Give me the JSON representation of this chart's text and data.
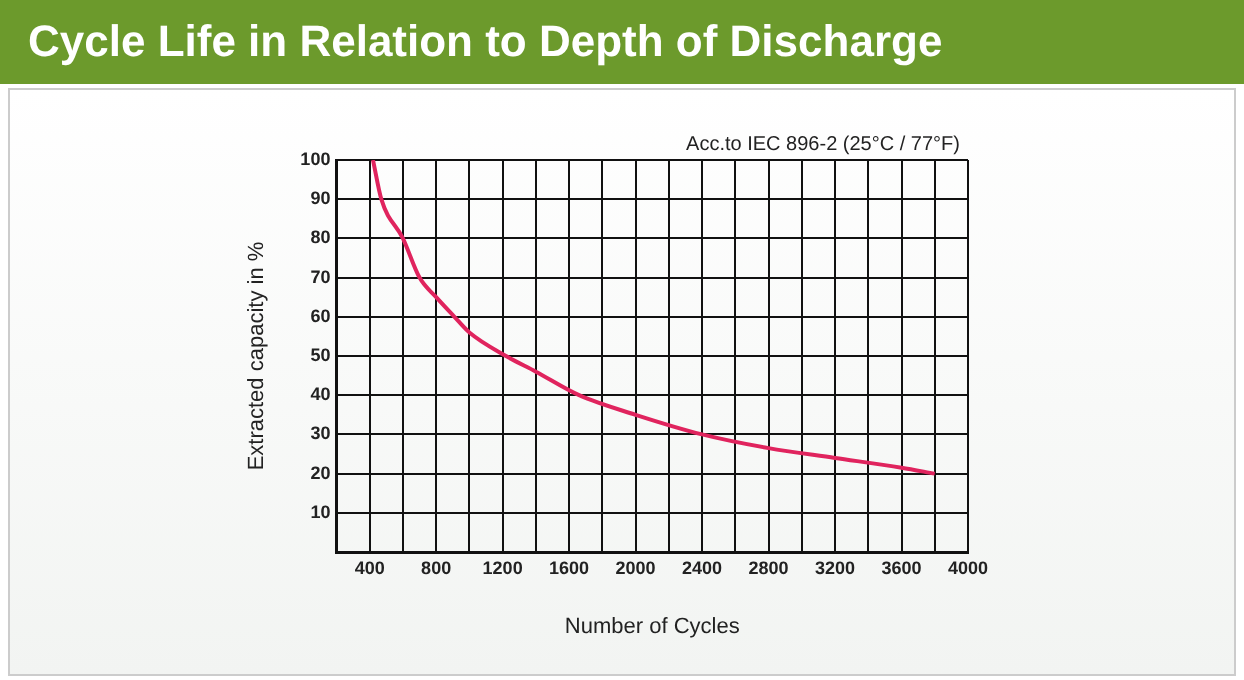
{
  "chart_data": {
    "type": "line",
    "title": "Cycle Life in Relation to Depth of Discharge",
    "xlabel": "Number of Cycles",
    "ylabel": "Extracted capacity in %",
    "annotations": [
      "Acc.to IEC 896-2 (25°C / 77°F)"
    ],
    "x": [
      420,
      470,
      600,
      700,
      800,
      910,
      1000,
      1220,
      1400,
      1660,
      2000,
      2400,
      2800,
      3200,
      3600,
      3800
    ],
    "series": [
      {
        "color": "#e0245e",
        "values": [
          100,
          90,
          80,
          70,
          65,
          60,
          56,
          50,
          46,
          40,
          35,
          30,
          26.5,
          24,
          21.5,
          20
        ]
      }
    ],
    "xlim": [
      200,
      4000
    ],
    "xticks": [
      {
        "value": 200,
        "label": null
      },
      400,
      {
        "value": 600,
        "label": null
      },
      800,
      {
        "value": 1000,
        "label": null
      },
      1200,
      {
        "value": 1400,
        "label": null
      },
      1600,
      {
        "value": 1800,
        "label": null
      },
      2000,
      {
        "value": 2200,
        "label": null
      },
      2400,
      {
        "value": 2600,
        "label": null
      },
      2800,
      {
        "value": 3000,
        "label": null
      },
      3200,
      {
        "value": 3400,
        "label": null
      },
      3600,
      {
        "value": 3800,
        "label": null
      },
      4000
    ],
    "ylim": [
      0,
      100
    ],
    "yticks": [
      {
        "value": 0,
        "label": null
      },
      10,
      20,
      30,
      40,
      50,
      60,
      70,
      80,
      90,
      100
    ],
    "grid": true,
    "marker": "none",
    "line_style": "solid"
  }
}
